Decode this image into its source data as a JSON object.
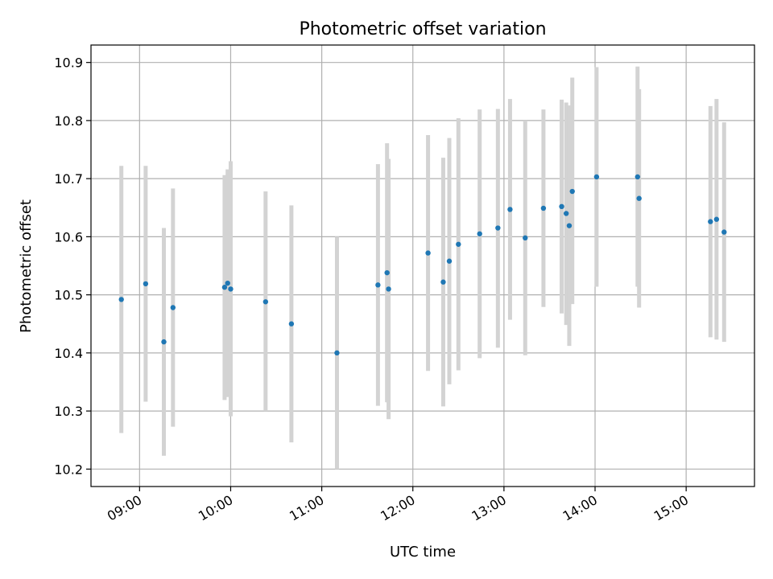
{
  "chart_data": {
    "type": "scatter",
    "title": "Photometric offset variation",
    "xlabel": "UTC time",
    "ylabel": "Photometric offset",
    "xlim": [
      "08:28",
      "15:45"
    ],
    "ylim": [
      10.17,
      10.93
    ],
    "grid": true,
    "x_ticks": [
      "09:00",
      "10:00",
      "11:00",
      "12:00",
      "13:00",
      "14:00",
      "15:00"
    ],
    "y_ticks": [
      "10.2",
      "10.3",
      "10.4",
      "10.5",
      "10.6",
      "10.7",
      "10.8",
      "10.9"
    ],
    "colors": {
      "point": "#1f77b4",
      "errorbar": "#d3d3d3",
      "grid": "#b0b0b0"
    },
    "series": [
      {
        "points": [
          {
            "t": "08:48",
            "y": 10.492,
            "ylo": 10.262,
            "yhi": 10.722
          },
          {
            "t": "09:04",
            "y": 10.519,
            "ylo": 10.316,
            "yhi": 10.722
          },
          {
            "t": "09:16",
            "y": 10.419,
            "ylo": 10.223,
            "yhi": 10.615
          },
          {
            "t": "09:22",
            "y": 10.478,
            "ylo": 10.273,
            "yhi": 10.683
          },
          {
            "t": "09:56",
            "y": 10.513,
            "ylo": 10.319,
            "yhi": 10.706
          },
          {
            "t": "09:58",
            "y": 10.52,
            "ylo": 10.324,
            "yhi": 10.716
          },
          {
            "t": "10:00",
            "y": 10.51,
            "ylo": 10.291,
            "yhi": 10.73
          },
          {
            "t": "10:23",
            "y": 10.488,
            "ylo": 10.3,
            "yhi": 10.678
          },
          {
            "t": "10:40",
            "y": 10.45,
            "ylo": 10.246,
            "yhi": 10.654
          },
          {
            "t": "11:10",
            "y": 10.4,
            "ylo": 10.2,
            "yhi": 10.6
          },
          {
            "t": "11:37",
            "y": 10.517,
            "ylo": 10.309,
            "yhi": 10.725
          },
          {
            "t": "11:43",
            "y": 10.538,
            "ylo": 10.315,
            "yhi": 10.761
          },
          {
            "t": "11:44",
            "y": 10.51,
            "ylo": 10.286,
            "yhi": 10.734
          },
          {
            "t": "12:10",
            "y": 10.572,
            "ylo": 10.369,
            "yhi": 10.775
          },
          {
            "t": "12:20",
            "y": 10.522,
            "ylo": 10.308,
            "yhi": 10.736
          },
          {
            "t": "12:24",
            "y": 10.558,
            "ylo": 10.346,
            "yhi": 10.77
          },
          {
            "t": "12:30",
            "y": 10.587,
            "ylo": 10.37,
            "yhi": 10.804
          },
          {
            "t": "12:44",
            "y": 10.605,
            "ylo": 10.391,
            "yhi": 10.819
          },
          {
            "t": "12:56",
            "y": 10.615,
            "ylo": 10.409,
            "yhi": 10.82
          },
          {
            "t": "13:04",
            "y": 10.647,
            "ylo": 10.457,
            "yhi": 10.837
          },
          {
            "t": "13:14",
            "y": 10.598,
            "ylo": 10.396,
            "yhi": 10.8
          },
          {
            "t": "13:26",
            "y": 10.649,
            "ylo": 10.479,
            "yhi": 10.819
          },
          {
            "t": "13:38",
            "y": 10.652,
            "ylo": 10.468,
            "yhi": 10.836
          },
          {
            "t": "13:41",
            "y": 10.64,
            "ylo": 10.448,
            "yhi": 10.831
          },
          {
            "t": "13:43",
            "y": 10.619,
            "ylo": 10.412,
            "yhi": 10.826
          },
          {
            "t": "13:45",
            "y": 10.678,
            "ylo": 10.484,
            "yhi": 10.874
          },
          {
            "t": "14:01",
            "y": 10.703,
            "ylo": 10.514,
            "yhi": 10.892
          },
          {
            "t": "14:28",
            "y": 10.703,
            "ylo": 10.514,
            "yhi": 10.893
          },
          {
            "t": "14:29",
            "y": 10.666,
            "ylo": 10.478,
            "yhi": 10.854
          },
          {
            "t": "15:16",
            "y": 10.626,
            "ylo": 10.427,
            "yhi": 10.825
          },
          {
            "t": "15:20",
            "y": 10.63,
            "ylo": 10.423,
            "yhi": 10.837
          },
          {
            "t": "15:25",
            "y": 10.608,
            "ylo": 10.419,
            "yhi": 10.797
          }
        ]
      }
    ]
  }
}
